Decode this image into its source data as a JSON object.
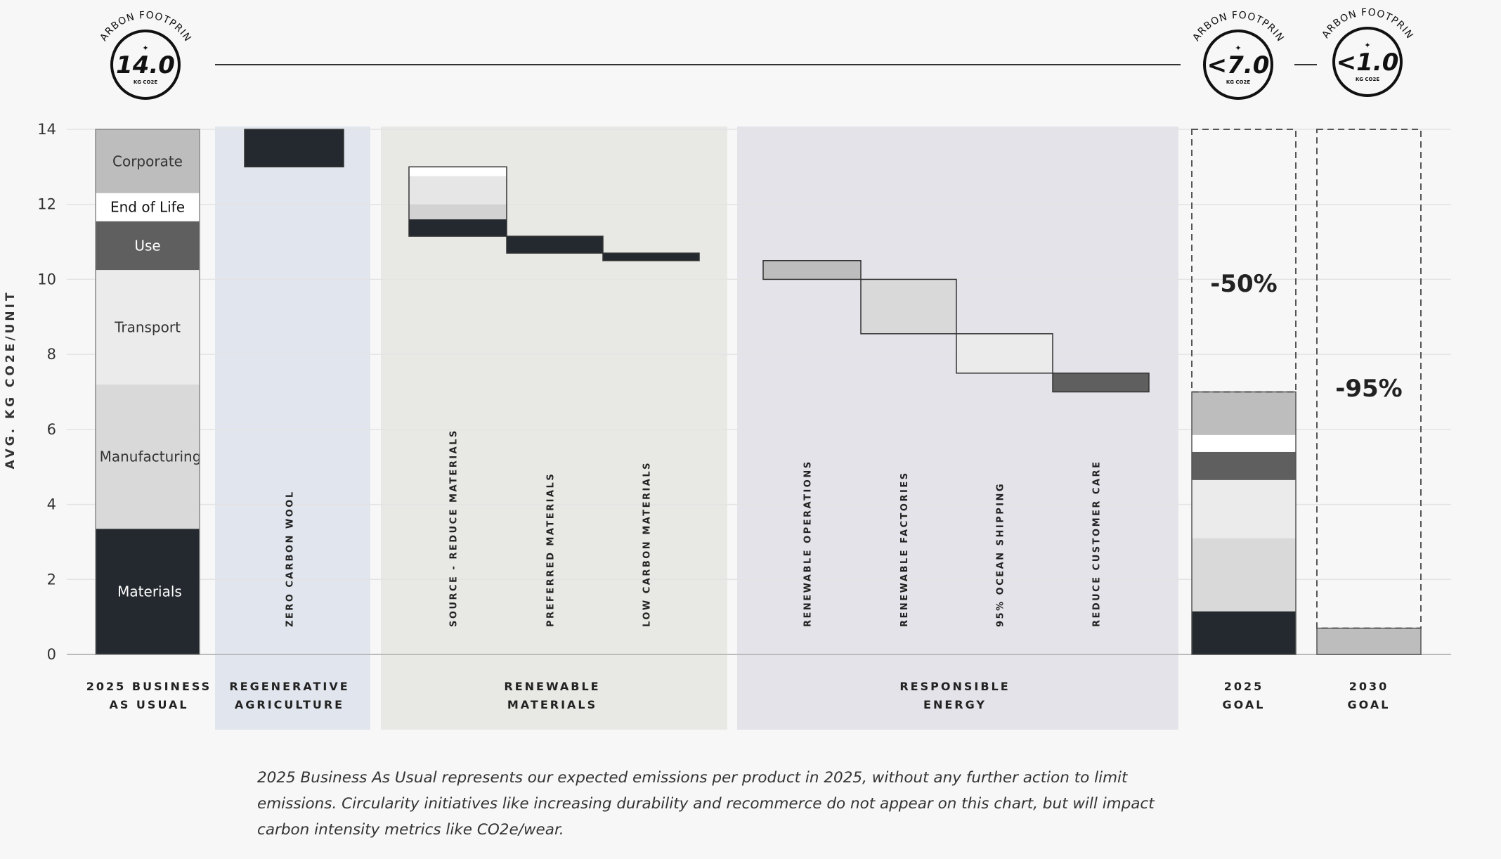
{
  "chart_data": {
    "type": "waterfall",
    "ylabel": "AVG. KG CO2E/UNIT",
    "ylim": [
      0,
      14
    ],
    "yticks": [
      0,
      2,
      4,
      6,
      8,
      10,
      12,
      14
    ],
    "business_as_usual": {
      "label": "2025 BUSINESS AS USUAL",
      "label_lines": [
        "2025 BUSINESS",
        "AS USUAL"
      ],
      "total": 14.0,
      "segments": [
        {
          "name": "Materials",
          "start": 0.0,
          "end": 3.35,
          "color": "#23292e",
          "text_color": "#ffffff"
        },
        {
          "name": "Manufacturing",
          "start": 3.35,
          "end": 7.2,
          "color": "#d9d9d9",
          "text_color": "#333333"
        },
        {
          "name": "Transport",
          "start": 7.2,
          "end": 10.25,
          "color": "#ebebeb",
          "text_color": "#333333"
        },
        {
          "name": "Use",
          "start": 10.25,
          "end": 11.55,
          "color": "#5f5f5f",
          "text_color": "#ffffff"
        },
        {
          "name": "End of Life",
          "start": 11.55,
          "end": 12.3,
          "color": "#ffffff",
          "text_color": "#111111"
        },
        {
          "name": "Corporate",
          "start": 12.3,
          "end": 14.0,
          "color": "#bdbdbd",
          "text_color": "#333333"
        }
      ]
    },
    "groups": [
      {
        "label": "REGENERATIVE AGRICULTURE",
        "label_lines": [
          "REGENERATIVE",
          "AGRICULTURE"
        ],
        "bg": "#e1e6ee",
        "steps": [
          {
            "label": "ZERO CARBON WOOL",
            "from": 14.0,
            "to": 13.0,
            "parts": [
              {
                "from": 14.0,
                "to": 13.0,
                "color": "#23292e"
              }
            ]
          }
        ]
      },
      {
        "label": "RENEWABLE MATERIALS",
        "label_lines": [
          "RENEWABLE",
          "MATERIALS"
        ],
        "bg": "#e8e8e5",
        "steps": [
          {
            "label": "SOURCE - REDUCE MATERIALS",
            "from": 13.0,
            "to": 11.15,
            "parts": [
              {
                "from": 13.0,
                "to": 12.75,
                "color": "#ffffff"
              },
              {
                "from": 12.75,
                "to": 12.0,
                "color": "#e6e6e6"
              },
              {
                "from": 12.0,
                "to": 11.6,
                "color": "#d2d2d2"
              },
              {
                "from": 11.6,
                "to": 11.15,
                "color": "#23292e"
              }
            ]
          },
          {
            "label": "PREFERRED MATERIALS",
            "from": 11.15,
            "to": 10.7,
            "parts": [
              {
                "from": 11.15,
                "to": 10.7,
                "color": "#23292e"
              }
            ]
          },
          {
            "label": "LOW CARBON MATERIALS",
            "from": 10.7,
            "to": 10.5,
            "parts": [
              {
                "from": 10.7,
                "to": 10.5,
                "color": "#23292e"
              }
            ]
          }
        ]
      },
      {
        "label": "RESPONSIBLE ENERGY",
        "label_lines": [
          "RESPONSIBLE",
          "ENERGY"
        ],
        "bg": "#e4e3e9",
        "steps": [
          {
            "label": "RENEWABLE OPERATIONS",
            "from": 10.5,
            "to": 10.0,
            "parts": [
              {
                "from": 10.5,
                "to": 10.0,
                "color": "#bdbdbd"
              }
            ]
          },
          {
            "label": "RENEWABLE  FACTORIES",
            "from": 10.0,
            "to": 8.55,
            "parts": [
              {
                "from": 10.0,
                "to": 8.55,
                "color": "#d9d9d9"
              }
            ]
          },
          {
            "label": "95% OCEAN SHIPPING",
            "from": 8.55,
            "to": 7.5,
            "parts": [
              {
                "from": 8.55,
                "to": 7.5,
                "color": "#ebebeb"
              }
            ]
          },
          {
            "label": "REDUCE CUSTOMER CARE",
            "from": 7.5,
            "to": 7.0,
            "parts": [
              {
                "from": 7.5,
                "to": 7.0,
                "color": "#5f5f5f"
              }
            ]
          }
        ]
      }
    ],
    "goals": [
      {
        "label": "2025 GOAL",
        "label_lines": [
          "2025",
          "GOAL"
        ],
        "reduction": "-50%",
        "target": 7.0,
        "segments": [
          {
            "start": 0.0,
            "end": 1.15,
            "color": "#23292e"
          },
          {
            "start": 1.15,
            "end": 3.1,
            "color": "#d9d9d9"
          },
          {
            "start": 3.1,
            "end": 4.65,
            "color": "#ebebeb"
          },
          {
            "start": 4.65,
            "end": 5.4,
            "color": "#5f5f5f"
          },
          {
            "start": 5.4,
            "end": 5.85,
            "color": "#ffffff"
          },
          {
            "start": 5.85,
            "end": 7.0,
            "color": "#bdbdbd"
          }
        ]
      },
      {
        "label": "2030 GOAL",
        "label_lines": [
          "2030",
          "GOAL"
        ],
        "reduction": "-95%",
        "target": 0.7,
        "segments": [
          {
            "start": 0.0,
            "end": 0.7,
            "color": "#bdbdbd"
          }
        ]
      }
    ]
  },
  "badges": [
    {
      "ring_text": "CARBON FOOTPRINT",
      "value": "14.0",
      "unit": "KG CO2E"
    },
    {
      "ring_text": "CARBON FOOTPRINT",
      "value": "<7.0",
      "unit": "KG CO2E"
    },
    {
      "ring_text": "CARBON FOOTPRINT",
      "value": "<1.0",
      "unit": "KG CO2E"
    }
  ],
  "footnote": "2025 Business As Usual represents our expected emissions per product in 2025, without any further action to limit emissions. Circularity initiatives like increasing durability and recommerce do not appear on this chart, but will impact carbon intensity metrics like CO2e/wear."
}
